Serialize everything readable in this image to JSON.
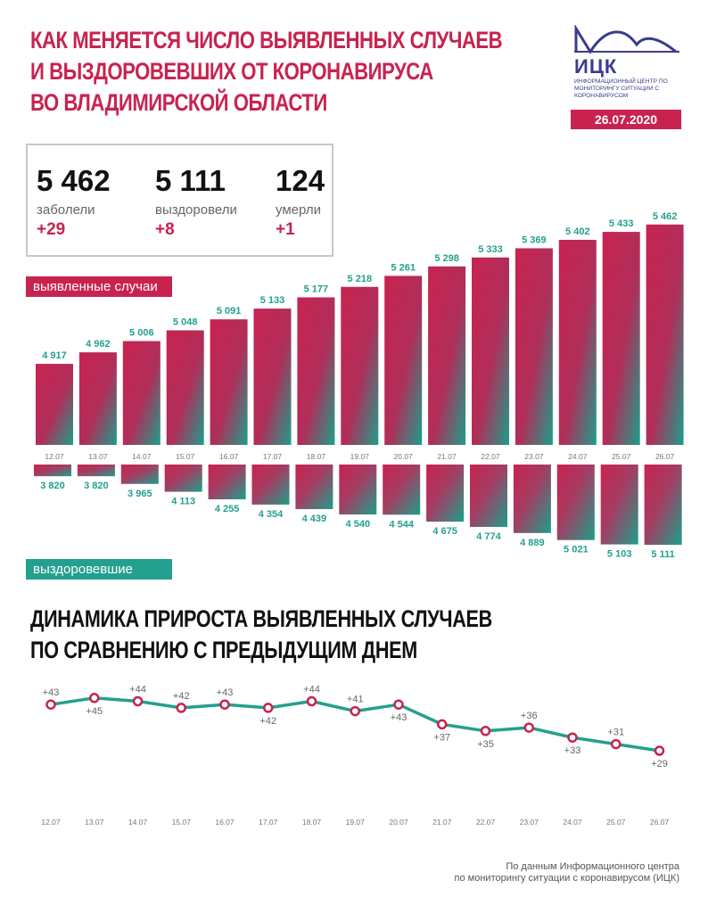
{
  "header": {
    "title_lines": [
      "КАК МЕНЯЕТСЯ ЧИСЛО ВЫЯВЛЕННЫХ СЛУЧАЕВ",
      "И ВЫЗДОРОВЕВШИХ ОТ КОРОНАВИРУСА",
      "ВО ВЛАДИМИРСКОЙ ОБЛАСТИ"
    ],
    "logo_abbr": "ИЦК",
    "logo_org": "ИНФОРМАЦИОННЫЙ ЦЕНТР ПО МОНИТОРИНГУ СИТУАЦИИ С КОРОНАВИРУСОМ",
    "date": "26.07.2020"
  },
  "summary": {
    "cases": {
      "value": "5 462",
      "label": "заболели",
      "delta": "+29"
    },
    "recovered": {
      "value": "5 111",
      "label": "выздоровели",
      "delta": "+8"
    },
    "deaths": {
      "value": "124",
      "label": "умерли",
      "delta": "+1"
    }
  },
  "labels": {
    "cases_tag": "выявленные случаи",
    "recovered_tag": "выздоровевшие",
    "section2_lines": [
      "ДИНАМИКА ПРИРОСТА ВЫЯВЛЕННЫХ СЛУЧАЕВ",
      "ПО СРАВНЕНИЮ С ПРЕДЫДУЩИМ ДНЕМ"
    ]
  },
  "colors": {
    "accent": "#c8234f",
    "teal": "#23a08e",
    "navy": "#3b3b8f"
  },
  "footer": {
    "line1": "По данным Информационного центра",
    "line2": "по мониторингу ситуации с коронавирусом (ИЦК)"
  },
  "chart_data": [
    {
      "type": "bar",
      "name": "выявленные случаи",
      "categories": [
        "12.07",
        "13.07",
        "14.07",
        "15.07",
        "16.07",
        "17.07",
        "18.07",
        "19.07",
        "20.07",
        "21.07",
        "22.07",
        "23.07",
        "24.07",
        "25.07",
        "26.07"
      ],
      "values": [
        4917,
        4962,
        5006,
        5048,
        5091,
        5133,
        5177,
        5218,
        5261,
        5298,
        5333,
        5369,
        5402,
        5433,
        5462
      ],
      "value_labels": [
        "4 917",
        "4 962",
        "5 006",
        "5 048",
        "5 091",
        "5 133",
        "5 177",
        "5 218",
        "5 261",
        "5 298",
        "5 333",
        "5 369",
        "5 402",
        "5 433",
        "5 462"
      ]
    },
    {
      "type": "bar",
      "name": "выздоровевшие",
      "categories": [
        "12.07",
        "13.07",
        "14.07",
        "15.07",
        "16.07",
        "17.07",
        "18.07",
        "19.07",
        "20.07",
        "21.07",
        "22.07",
        "23.07",
        "24.07",
        "25.07",
        "26.07"
      ],
      "values": [
        3820,
        3820,
        3965,
        4113,
        4255,
        4354,
        4439,
        4540,
        4544,
        4675,
        4774,
        4889,
        5021,
        5103,
        5111
      ],
      "value_labels": [
        "3 820",
        "3 820",
        "3 965",
        "4 113",
        "4 255",
        "4 354",
        "4 439",
        "4 540",
        "4 544",
        "4 675",
        "4 774",
        "4 889",
        "5 021",
        "5 103",
        "5 111"
      ]
    },
    {
      "type": "line",
      "name": "прирост выявленных случаев",
      "categories": [
        "12.07",
        "13.07",
        "14.07",
        "15.07",
        "16.07",
        "17.07",
        "18.07",
        "19.07",
        "20.07",
        "21.07",
        "22.07",
        "23.07",
        "24.07",
        "25.07",
        "26.07"
      ],
      "values": [
        43,
        45,
        44,
        42,
        43,
        42,
        44,
        41,
        43,
        37,
        35,
        36,
        33,
        31,
        29
      ],
      "value_labels": [
        "+43",
        "+45",
        "+44",
        "+42",
        "+43",
        "+42",
        "+44",
        "+41",
        "+43",
        "+37",
        "+35",
        "+36",
        "+33",
        "+31",
        "+29"
      ],
      "label_positions": [
        "above",
        "below",
        "above",
        "above",
        "above",
        "below",
        "above",
        "above",
        "below",
        "below",
        "below",
        "above",
        "below",
        "above",
        "below"
      ]
    }
  ]
}
